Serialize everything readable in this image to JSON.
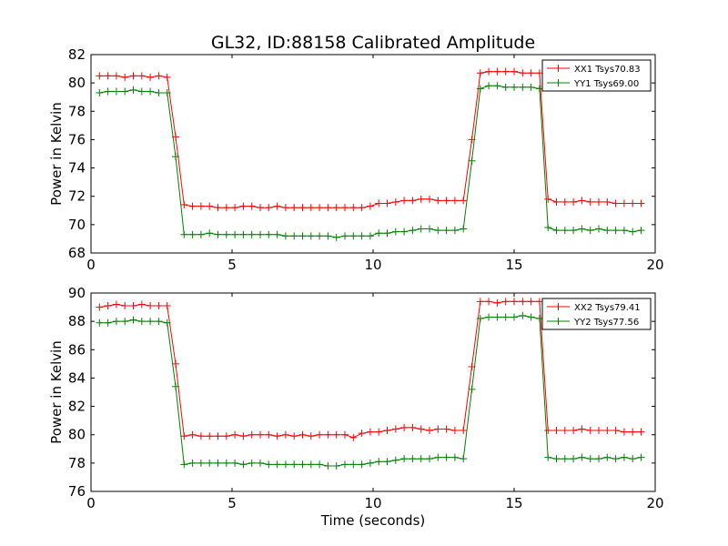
{
  "figure": {
    "title": "GL32, ID:88158 Calibrated Amplitude"
  },
  "chart_data": [
    {
      "type": "line",
      "xlabel": "",
      "ylabel": "Power in Kelvin",
      "xlim": [
        0,
        20
      ],
      "ylim": [
        68,
        82
      ],
      "xticks": [
        0,
        5,
        10,
        15,
        20
      ],
      "yticks": [
        68,
        70,
        72,
        74,
        76,
        78,
        80,
        82
      ],
      "grid": false,
      "legend_position": "top-right",
      "x": [
        0.3,
        0.6,
        0.9,
        1.2,
        1.5,
        1.8,
        2.1,
        2.4,
        2.7,
        3.0,
        3.3,
        3.6,
        3.9,
        4.2,
        4.5,
        4.8,
        5.1,
        5.4,
        5.7,
        6.0,
        6.3,
        6.6,
        6.9,
        7.2,
        7.5,
        7.8,
        8.1,
        8.4,
        8.7,
        9.0,
        9.3,
        9.6,
        9.9,
        10.2,
        10.5,
        10.8,
        11.1,
        11.4,
        11.7,
        12.0,
        12.3,
        12.6,
        12.9,
        13.2,
        13.5,
        13.8,
        14.1,
        14.4,
        14.7,
        15.0,
        15.3,
        15.6,
        15.9,
        16.2,
        16.5,
        16.8,
        17.1,
        17.4,
        17.7,
        18.0,
        18.3,
        18.6,
        18.9,
        19.2,
        19.5
      ],
      "series": [
        {
          "name": "XX1 Tsys70.83",
          "color": "#ff0000",
          "values": [
            80.5,
            80.5,
            80.5,
            80.4,
            80.5,
            80.5,
            80.4,
            80.5,
            80.4,
            76.2,
            71.4,
            71.3,
            71.3,
            71.3,
            71.2,
            71.2,
            71.2,
            71.3,
            71.3,
            71.2,
            71.2,
            71.3,
            71.2,
            71.2,
            71.2,
            71.2,
            71.2,
            71.2,
            71.2,
            71.2,
            71.2,
            71.2,
            71.3,
            71.5,
            71.5,
            71.6,
            71.7,
            71.7,
            71.8,
            71.8,
            71.7,
            71.7,
            71.7,
            71.7,
            76.0,
            80.7,
            80.8,
            80.8,
            80.8,
            80.8,
            80.7,
            80.7,
            80.7,
            71.8,
            71.6,
            71.6,
            71.6,
            71.7,
            71.6,
            71.6,
            71.6,
            71.5,
            71.5,
            71.5,
            71.5
          ]
        },
        {
          "name": "YY1 Tsys69.00",
          "color": "#008000",
          "values": [
            79.3,
            79.4,
            79.4,
            79.4,
            79.5,
            79.4,
            79.4,
            79.3,
            79.3,
            74.8,
            69.3,
            69.3,
            69.3,
            69.4,
            69.3,
            69.3,
            69.3,
            69.3,
            69.3,
            69.3,
            69.3,
            69.3,
            69.2,
            69.2,
            69.2,
            69.2,
            69.2,
            69.2,
            69.1,
            69.2,
            69.2,
            69.2,
            69.2,
            69.4,
            69.4,
            69.5,
            69.5,
            69.6,
            69.7,
            69.7,
            69.6,
            69.6,
            69.6,
            69.7,
            74.5,
            79.6,
            79.8,
            79.8,
            79.7,
            79.7,
            79.7,
            79.7,
            79.6,
            69.8,
            69.6,
            69.6,
            69.6,
            69.7,
            69.6,
            69.7,
            69.6,
            69.6,
            69.6,
            69.5,
            69.6
          ]
        }
      ]
    },
    {
      "type": "line",
      "xlabel": "Time (seconds)",
      "ylabel": "Power in Kelvin",
      "xlim": [
        0,
        20
      ],
      "ylim": [
        76,
        90
      ],
      "xticks": [
        0,
        5,
        10,
        15,
        20
      ],
      "yticks": [
        76,
        78,
        80,
        82,
        84,
        86,
        88,
        90
      ],
      "grid": false,
      "legend_position": "top-right",
      "x": [
        0.3,
        0.6,
        0.9,
        1.2,
        1.5,
        1.8,
        2.1,
        2.4,
        2.7,
        3.0,
        3.3,
        3.6,
        3.9,
        4.2,
        4.5,
        4.8,
        5.1,
        5.4,
        5.7,
        6.0,
        6.3,
        6.6,
        6.9,
        7.2,
        7.5,
        7.8,
        8.1,
        8.4,
        8.7,
        9.0,
        9.3,
        9.6,
        9.9,
        10.2,
        10.5,
        10.8,
        11.1,
        11.4,
        11.7,
        12.0,
        12.3,
        12.6,
        12.9,
        13.2,
        13.5,
        13.8,
        14.1,
        14.4,
        14.7,
        15.0,
        15.3,
        15.6,
        15.9,
        16.2,
        16.5,
        16.8,
        17.1,
        17.4,
        17.7,
        18.0,
        18.3,
        18.6,
        18.9,
        19.2,
        19.5
      ],
      "series": [
        {
          "name": "XX2 Tsys79.41",
          "color": "#ff0000",
          "values": [
            89.0,
            89.1,
            89.2,
            89.1,
            89.1,
            89.2,
            89.1,
            89.1,
            89.1,
            85.0,
            79.9,
            80.0,
            79.9,
            79.9,
            79.9,
            79.9,
            80.0,
            79.9,
            80.0,
            80.0,
            80.0,
            79.9,
            80.0,
            79.9,
            80.0,
            79.9,
            80.0,
            80.0,
            80.0,
            80.0,
            79.8,
            80.1,
            80.2,
            80.2,
            80.3,
            80.4,
            80.5,
            80.5,
            80.4,
            80.3,
            80.4,
            80.4,
            80.3,
            80.3,
            84.8,
            89.4,
            89.4,
            89.3,
            89.4,
            89.4,
            89.4,
            89.4,
            89.4,
            80.3,
            80.3,
            80.3,
            80.3,
            80.4,
            80.3,
            80.3,
            80.3,
            80.3,
            80.2,
            80.2,
            80.2
          ]
        },
        {
          "name": "YY2 Tsys77.56",
          "color": "#008000",
          "values": [
            87.9,
            87.9,
            88.0,
            88.0,
            88.1,
            88.0,
            88.0,
            88.0,
            87.9,
            83.4,
            77.9,
            78.0,
            78.0,
            78.0,
            78.0,
            78.0,
            78.0,
            77.9,
            78.0,
            78.0,
            77.9,
            77.9,
            77.9,
            77.9,
            77.9,
            77.9,
            77.9,
            77.8,
            77.8,
            77.9,
            77.9,
            77.9,
            78.0,
            78.1,
            78.1,
            78.2,
            78.3,
            78.3,
            78.3,
            78.3,
            78.4,
            78.4,
            78.4,
            78.3,
            83.2,
            88.2,
            88.3,
            88.3,
            88.3,
            88.3,
            88.4,
            88.3,
            88.2,
            78.4,
            78.3,
            78.3,
            78.3,
            78.4,
            78.3,
            78.3,
            78.4,
            78.3,
            78.4,
            78.3,
            78.4
          ]
        }
      ]
    }
  ]
}
